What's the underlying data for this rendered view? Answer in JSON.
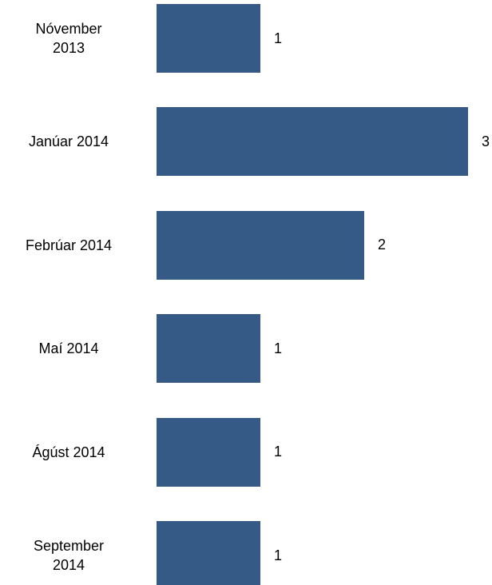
{
  "chart_data": {
    "type": "bar",
    "orientation": "horizontal",
    "categories": [
      "Nóvember\n2013",
      "Janúar 2014",
      "Febrúar 2014",
      "Maí 2014",
      "Ágúst 2014",
      "September\n2014"
    ],
    "values": [
      1,
      3,
      2,
      1,
      1,
      1
    ],
    "color": "#355a86",
    "xlim": [
      0,
      3
    ]
  }
}
